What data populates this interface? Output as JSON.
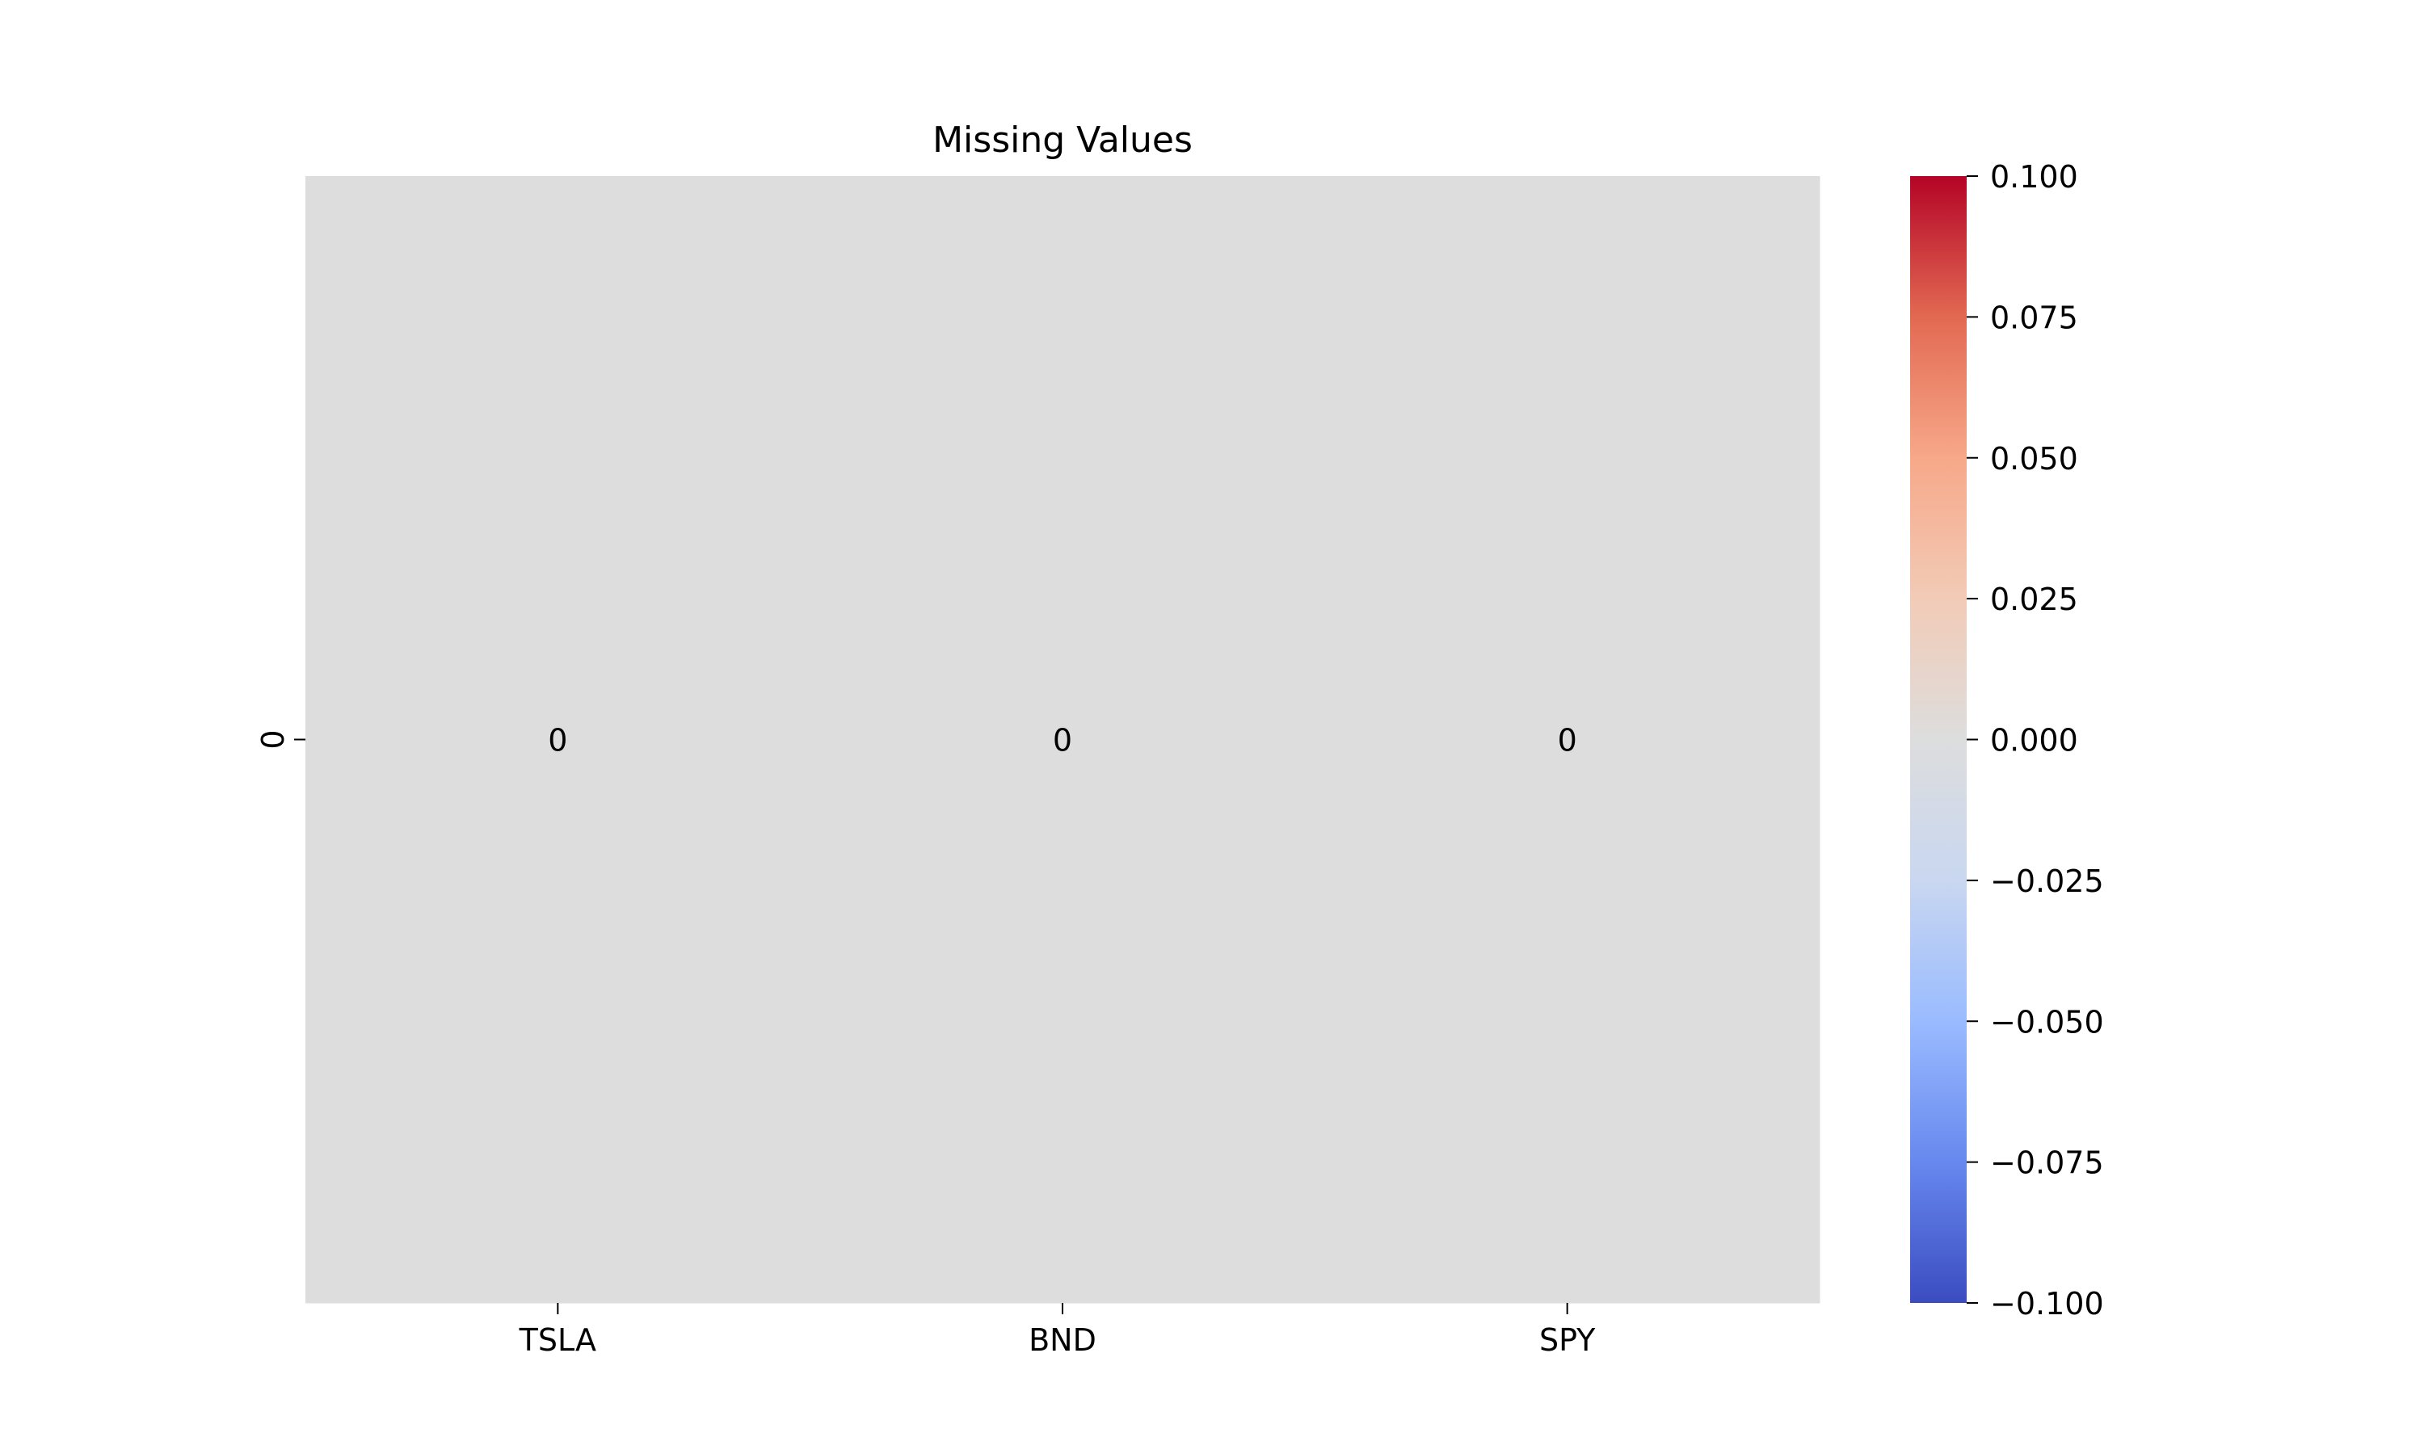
{
  "chart_data": {
    "type": "heatmap",
    "title": "Missing Values",
    "xlabel": "",
    "ylabel": "",
    "x_categories": [
      "TSLA",
      "BND",
      "SPY"
    ],
    "y_categories": [
      "0"
    ],
    "values": [
      [
        0,
        0,
        0
      ]
    ],
    "annotations": [
      [
        "0",
        "0",
        "0"
      ]
    ],
    "colormap": "coolwarm",
    "cell_color": "#dddddd",
    "colorbar": {
      "vmin": -0.1,
      "vmax": 0.1,
      "ticks": [
        0.1,
        0.075,
        0.05,
        0.025,
        0.0,
        -0.025,
        -0.05,
        -0.075,
        -0.1
      ],
      "tick_labels": [
        "0.100",
        "0.075",
        "0.050",
        "0.025",
        "0.000",
        "−0.025",
        "−0.050",
        "−0.075",
        "−0.100"
      ],
      "colors": [
        "#3b4cc0",
        "#6788ee",
        "#9abbff",
        "#c9d7f0",
        "#dddddd",
        "#f2cbb7",
        "#f7a889",
        "#e26952",
        "#b40426"
      ]
    },
    "grid": false
  }
}
